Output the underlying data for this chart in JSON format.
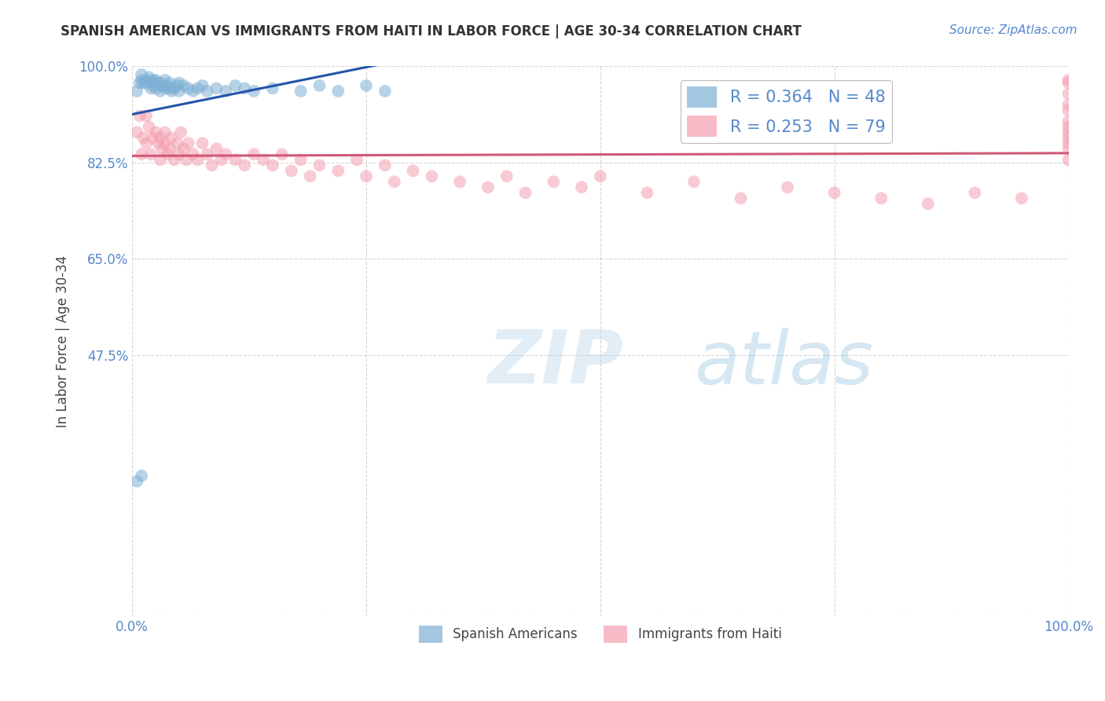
{
  "title": "SPANISH AMERICAN VS IMMIGRANTS FROM HAITI IN LABOR FORCE | AGE 30-34 CORRELATION CHART",
  "source": "Source: ZipAtlas.com",
  "ylabel": "In Labor Force | Age 30-34",
  "legend1_text": "R = 0.364   N = 48",
  "legend2_text": "R = 0.253   N = 79",
  "blue_color": "#7EB0D5",
  "pink_color": "#F4A0B0",
  "line_blue": "#2255AA",
  "line_pink": "#D05878",
  "title_color": "#333333",
  "source_color": "#5588CC",
  "axis_label_color": "#444444",
  "tick_color": "#5588CC",
  "grid_color": "#CCCCCC",
  "watermark_main": "#B8D4E8",
  "watermark_atlas": "#88BBDD",
  "blue_R": 0.364,
  "blue_N": 48,
  "pink_R": 0.253,
  "pink_N": 79,
  "blue_scatter_x": [
    0.005,
    0.008,
    0.01,
    0.01,
    0.012,
    0.015,
    0.015,
    0.018,
    0.02,
    0.02,
    0.022,
    0.022,
    0.025,
    0.025,
    0.025,
    0.03,
    0.03,
    0.03,
    0.032,
    0.035,
    0.035,
    0.038,
    0.04,
    0.04,
    0.042,
    0.045,
    0.048,
    0.05,
    0.05,
    0.055,
    0.06,
    0.065,
    0.07,
    0.075,
    0.08,
    0.09,
    0.1,
    0.11,
    0.12,
    0.13,
    0.15,
    0.18,
    0.2,
    0.22,
    0.25,
    0.27,
    0.005,
    0.01
  ],
  "blue_scatter_y": [
    0.955,
    0.97,
    0.975,
    0.985,
    0.97,
    0.97,
    0.975,
    0.98,
    0.97,
    0.96,
    0.965,
    0.975,
    0.97,
    0.96,
    0.975,
    0.955,
    0.965,
    0.97,
    0.965,
    0.96,
    0.975,
    0.965,
    0.96,
    0.97,
    0.955,
    0.96,
    0.965,
    0.955,
    0.97,
    0.965,
    0.96,
    0.955,
    0.96,
    0.965,
    0.955,
    0.96,
    0.955,
    0.965,
    0.96,
    0.955,
    0.96,
    0.955,
    0.965,
    0.955,
    0.965,
    0.955,
    0.245,
    0.255
  ],
  "pink_scatter_x": [
    0.005,
    0.008,
    0.01,
    0.012,
    0.015,
    0.015,
    0.018,
    0.02,
    0.022,
    0.025,
    0.028,
    0.03,
    0.03,
    0.032,
    0.035,
    0.035,
    0.038,
    0.04,
    0.042,
    0.045,
    0.048,
    0.05,
    0.052,
    0.055,
    0.058,
    0.06,
    0.065,
    0.07,
    0.075,
    0.08,
    0.085,
    0.09,
    0.095,
    0.1,
    0.11,
    0.12,
    0.13,
    0.14,
    0.15,
    0.16,
    0.17,
    0.18,
    0.19,
    0.2,
    0.22,
    0.24,
    0.25,
    0.27,
    0.28,
    0.3,
    0.32,
    0.35,
    0.38,
    0.4,
    0.42,
    0.45,
    0.48,
    0.5,
    0.55,
    0.6,
    0.65,
    0.7,
    0.75,
    0.8,
    0.85,
    0.9,
    0.95,
    1.0,
    1.0,
    1.0,
    1.0,
    1.0,
    1.0,
    1.0,
    1.0,
    1.0,
    1.0,
    1.0,
    1.0
  ],
  "pink_scatter_y": [
    0.88,
    0.91,
    0.84,
    0.87,
    0.86,
    0.91,
    0.89,
    0.84,
    0.87,
    0.88,
    0.86,
    0.83,
    0.87,
    0.85,
    0.86,
    0.88,
    0.84,
    0.85,
    0.87,
    0.83,
    0.86,
    0.84,
    0.88,
    0.85,
    0.83,
    0.86,
    0.84,
    0.83,
    0.86,
    0.84,
    0.82,
    0.85,
    0.83,
    0.84,
    0.83,
    0.82,
    0.84,
    0.83,
    0.82,
    0.84,
    0.81,
    0.83,
    0.8,
    0.82,
    0.81,
    0.83,
    0.8,
    0.82,
    0.79,
    0.81,
    0.8,
    0.79,
    0.78,
    0.8,
    0.77,
    0.79,
    0.78,
    0.8,
    0.77,
    0.79,
    0.76,
    0.78,
    0.77,
    0.76,
    0.75,
    0.77,
    0.76,
    0.975,
    0.95,
    0.97,
    0.88,
    0.92,
    0.85,
    0.9,
    0.87,
    0.93,
    0.83,
    0.86,
    0.89
  ],
  "blue_line_x": [
    0.0,
    0.27
  ],
  "pink_line_x": [
    0.0,
    1.0
  ],
  "xlim": [
    0.0,
    1.0
  ],
  "ylim": [
    0.0,
    1.0
  ],
  "xticks": [
    0.0,
    0.25,
    0.5,
    0.75,
    1.0
  ],
  "xticklabels": [
    "0.0%",
    "",
    "",
    "",
    "100.0%"
  ],
  "yticks": [
    0.0,
    0.475,
    0.65,
    0.825,
    1.0
  ],
  "yticklabels": [
    "",
    "47.5%",
    "65.0%",
    "82.5%",
    "100.0%"
  ]
}
